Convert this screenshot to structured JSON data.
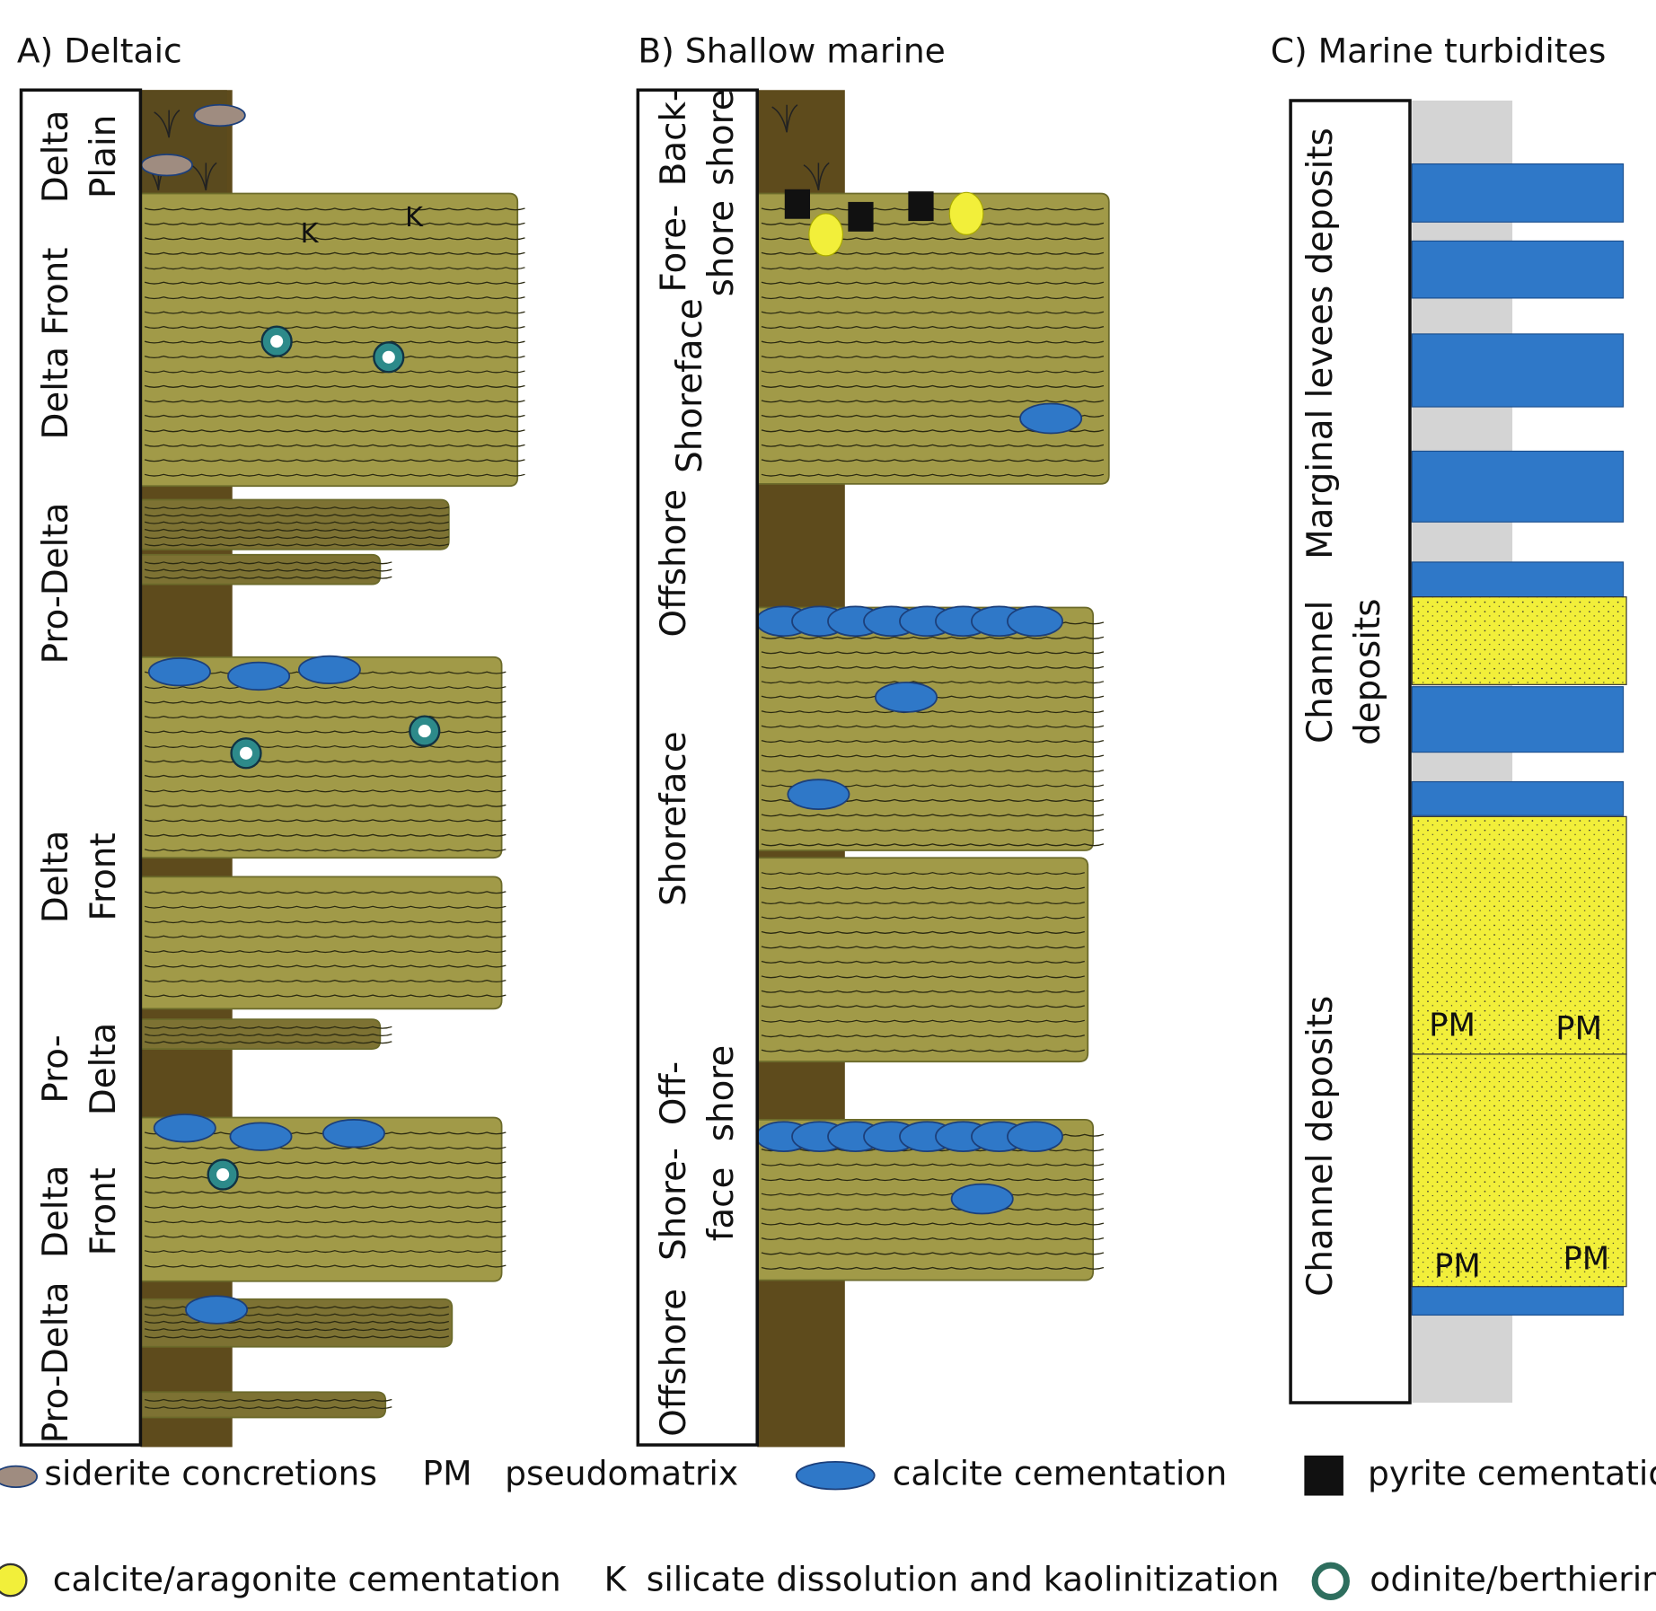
{
  "panels": [
    {
      "title": "A) Deltaic",
      "labels": [
        {
          "lines": [
            "Delta",
            "Plain"
          ]
        },
        {
          "lines": [
            "Delta Front"
          ]
        },
        {
          "lines": [
            "Pro-Delta"
          ]
        },
        {
          "lines": [
            "Delta",
            "Front"
          ]
        },
        {
          "lines": [
            "Pro-",
            "Delta"
          ]
        },
        {
          "lines": [
            "Delta",
            "Front"
          ]
        },
        {
          "lines": [
            "Pro-Delta"
          ]
        }
      ],
      "marks": [
        "K",
        "K"
      ]
    },
    {
      "title": "B) Shallow marine",
      "labels": [
        {
          "lines": [
            "Back-",
            "shore"
          ]
        },
        {
          "lines": [
            "Fore-",
            "shore"
          ]
        },
        {
          "lines": [
            "Shoreface"
          ]
        },
        {
          "lines": [
            "Offshore"
          ]
        },
        {
          "lines": [
            "Shoreface"
          ]
        },
        {
          "lines": [
            "Off-",
            "shore"
          ]
        },
        {
          "lines": [
            "Shore-",
            "face"
          ]
        },
        {
          "lines": [
            "Offshore"
          ]
        }
      ],
      "marks": []
    },
    {
      "title": "C) Marine turbidites",
      "labels": [
        {
          "lines": [
            "Marginal levees  deposits"
          ]
        },
        {
          "lines": [
            "Channel",
            "deposits"
          ]
        },
        {
          "lines": [
            "Channel deposits"
          ]
        }
      ],
      "marks": [
        "PM",
        "PM",
        "PM",
        "PM"
      ]
    }
  ],
  "legend": [
    {
      "symbol": "",
      "text": "siderite concretions"
    },
    {
      "symbol": "PM",
      "text": "pseudomatrix"
    },
    {
      "symbol": "",
      "text": "calcite cementation"
    },
    {
      "symbol": "",
      "text": "pyrite cementation"
    },
    {
      "symbol": "",
      "text": "calcite/aragonite cementation"
    },
    {
      "symbol": "K",
      "text": "silicate dissolution and kaolinitization"
    },
    {
      "symbol": "",
      "text": "odinite/berthierine"
    }
  ]
}
